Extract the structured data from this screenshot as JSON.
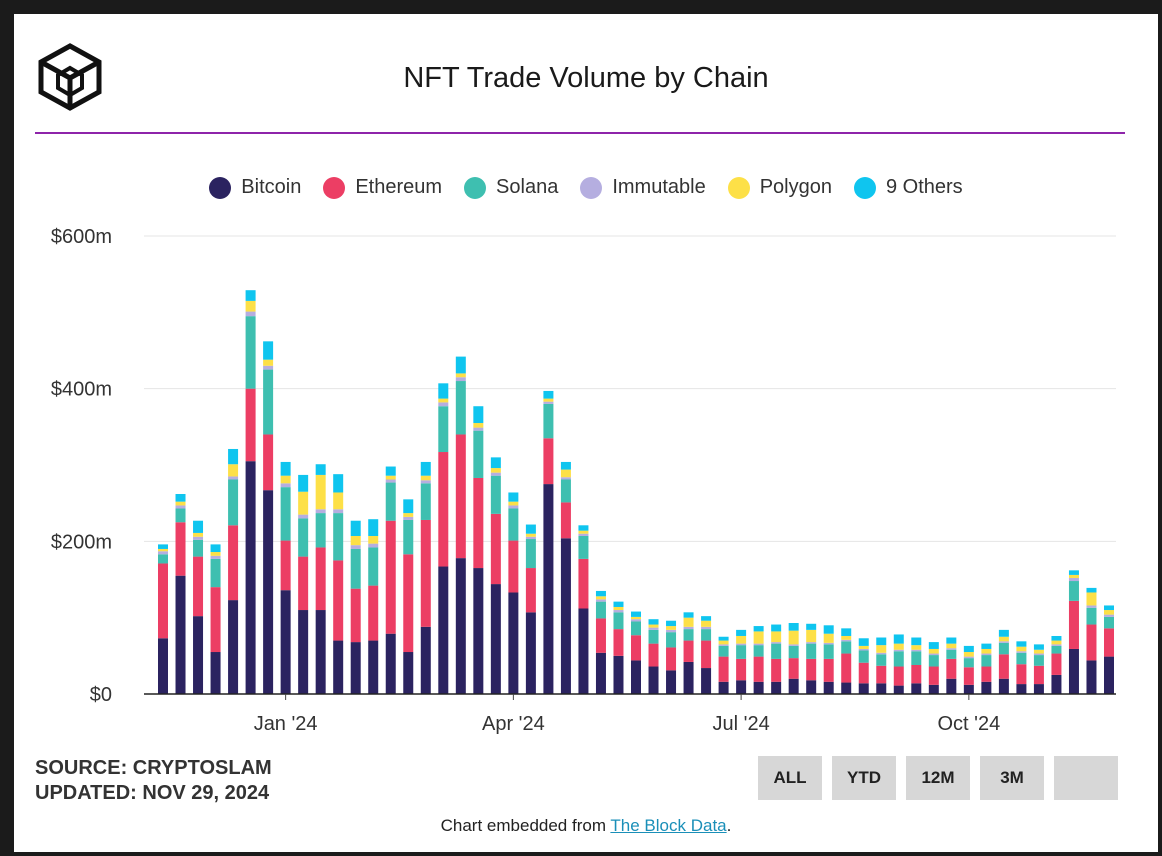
{
  "header": {
    "title": "NFT Trade Volume by Chain"
  },
  "legend": [
    {
      "label": "Bitcoin",
      "color": "#2b2360"
    },
    {
      "label": "Ethereum",
      "color": "#ec3e64"
    },
    {
      "label": "Solana",
      "color": "#3ebfb0"
    },
    {
      "label": "Immutable",
      "color": "#b5aee0"
    },
    {
      "label": "Polygon",
      "color": "#fde047"
    },
    {
      "label": "9 Others",
      "color": "#0fc5ef"
    }
  ],
  "footer": {
    "source": "SOURCE: CRYPTOSLAM",
    "updated": "UPDATED: NOV 29, 2024",
    "embedded_prefix": "Chart embedded from ",
    "embedded_link": "The Block Data",
    "embedded_suffix": "."
  },
  "range_buttons": [
    "ALL",
    "YTD",
    "12M",
    "3M",
    ""
  ],
  "chart_data": {
    "type": "bar",
    "stacked": true,
    "interval": "weekly",
    "y_unit": "$ millions",
    "ylim": [
      0,
      600
    ],
    "y_ticks": [
      {
        "value": 0,
        "label": "$0"
      },
      {
        "value": 200,
        "label": "$200m"
      },
      {
        "value": 400,
        "label": "$400m"
      },
      {
        "value": 600,
        "label": "$600m"
      }
    ],
    "x_ticks": [
      {
        "index": 7,
        "label": "Jan '24"
      },
      {
        "index": 20,
        "label": "Apr '24"
      },
      {
        "index": 33,
        "label": "Jul '24"
      },
      {
        "index": 46,
        "label": "Oct '24"
      }
    ],
    "grid": true,
    "legend_position": "top",
    "series": [
      {
        "name": "Bitcoin",
        "color": "#2b2360",
        "values": [
          73,
          155,
          102,
          55,
          123,
          305,
          267,
          136,
          110,
          110,
          70,
          68,
          70,
          79,
          55,
          88,
          167,
          178,
          165,
          144,
          133,
          107,
          275,
          204,
          112,
          54,
          50,
          44,
          36,
          31,
          42,
          34,
          16,
          18,
          16,
          16,
          20,
          18,
          16,
          15,
          14,
          14,
          11,
          14,
          12,
          20,
          12,
          16,
          20,
          13,
          13,
          25,
          59,
          44,
          49
        ]
      },
      {
        "name": "Ethereum",
        "color": "#ec3e64",
        "values": [
          98,
          70,
          78,
          85,
          98,
          95,
          73,
          65,
          70,
          82,
          105,
          70,
          72,
          148,
          128,
          140,
          150,
          162,
          118,
          92,
          68,
          58,
          60,
          47,
          65,
          45,
          35,
          33,
          30,
          30,
          28,
          36,
          33,
          28,
          33,
          30,
          27,
          28,
          30,
          38,
          27,
          23,
          25,
          24,
          24,
          26,
          23,
          20,
          32,
          26,
          24,
          28,
          63,
          47,
          37
        ]
      },
      {
        "name": "Solana",
        "color": "#3ebfb0",
        "values": [
          12,
          18,
          22,
          37,
          60,
          95,
          85,
          70,
          50,
          45,
          62,
          52,
          50,
          50,
          45,
          48,
          60,
          70,
          62,
          50,
          42,
          38,
          45,
          30,
          30,
          22,
          22,
          18,
          18,
          20,
          15,
          15,
          14,
          18,
          15,
          20,
          16,
          20,
          19,
          16,
          16,
          15,
          20,
          18,
          15,
          12,
          12,
          15,
          15,
          15,
          14,
          10,
          26,
          22,
          15
        ]
      },
      {
        "name": "Immutable",
        "color": "#b5aee0",
        "values": [
          4,
          4,
          4,
          4,
          4,
          6,
          5,
          5,
          5,
          5,
          5,
          5,
          5,
          4,
          4,
          4,
          5,
          5,
          4,
          4,
          4,
          3,
          3,
          3,
          3,
          3,
          3,
          3,
          3,
          3,
          3,
          3,
          2,
          2,
          2,
          2,
          2,
          2,
          2,
          2,
          2,
          2,
          2,
          2,
          2,
          2,
          2,
          2,
          2,
          2,
          2,
          2,
          4,
          3,
          3
        ]
      },
      {
        "name": "Polygon",
        "color": "#fde047",
        "values": [
          3,
          5,
          5,
          5,
          16,
          14,
          8,
          10,
          30,
          45,
          22,
          12,
          10,
          5,
          5,
          6,
          5,
          5,
          6,
          6,
          5,
          4,
          4,
          10,
          4,
          4,
          4,
          3,
          4,
          5,
          12,
          8,
          5,
          10,
          16,
          14,
          18,
          16,
          12,
          5,
          4,
          10,
          8,
          6,
          6,
          6,
          6,
          6,
          6,
          6,
          5,
          5,
          4,
          17,
          6
        ]
      },
      {
        "name": "9 Others",
        "color": "#0fc5ef",
        "values": [
          6,
          10,
          16,
          10,
          20,
          14,
          24,
          18,
          22,
          14,
          24,
          20,
          22,
          12,
          18,
          18,
          20,
          22,
          22,
          14,
          12,
          12,
          10,
          10,
          7,
          7,
          7,
          7,
          7,
          7,
          7,
          6,
          5,
          8,
          7,
          9,
          10,
          8,
          11,
          10,
          10,
          10,
          12,
          10,
          9,
          8,
          8,
          7,
          9,
          7,
          7,
          6,
          6,
          6,
          6
        ]
      }
    ]
  }
}
